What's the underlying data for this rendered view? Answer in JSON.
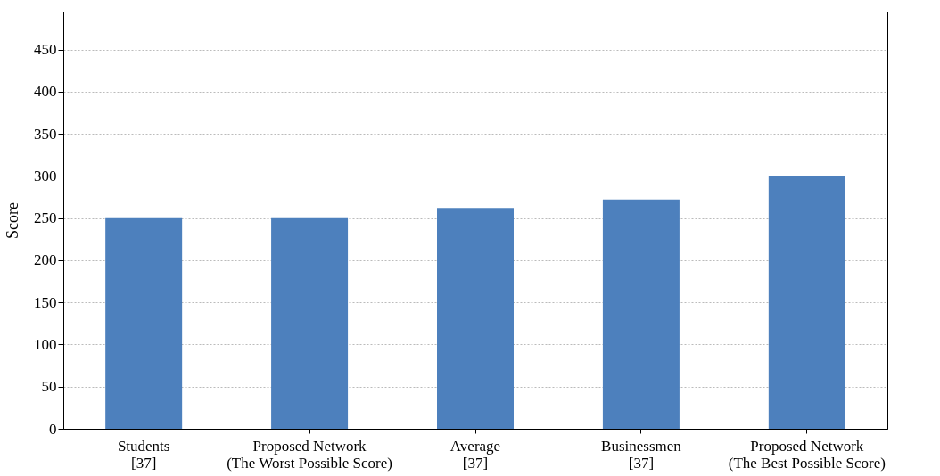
{
  "chart_data": {
    "type": "bar",
    "ylabel": "Score",
    "categories": [
      "Students\n[37]",
      "Proposed Network\n(The Worst Possible Score)",
      "Average\n[37]",
      "Businessmen\n[37]",
      "Proposed Network\n(The Best Possible Score)"
    ],
    "values": [
      250,
      250,
      262,
      272,
      300
    ],
    "color": "#4d80bd",
    "ylim": [
      0,
      495
    ],
    "yticks": [
      0,
      50,
      100,
      150,
      200,
      250,
      300,
      350,
      400,
      450
    ],
    "grid": "y"
  }
}
